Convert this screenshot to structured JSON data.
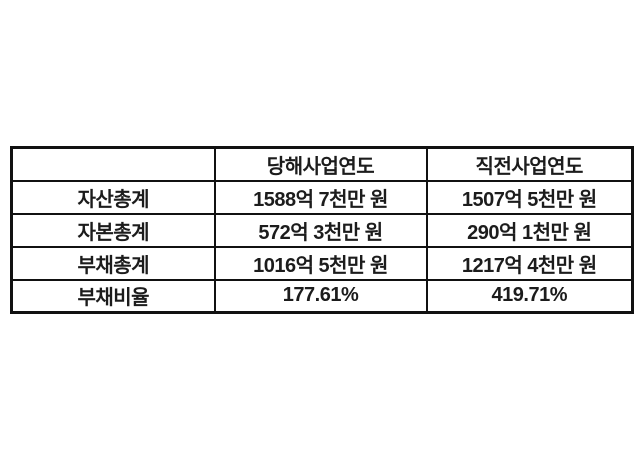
{
  "page": {
    "background": "#ffffff"
  },
  "table": {
    "border_color": "#111111",
    "text_color": "#1c1c1c",
    "header": {
      "corner": "",
      "current_year": "당해사업연도",
      "previous_year": "직전사업연도"
    },
    "rows": [
      {
        "label": "자산총계",
        "current": "1588억 7천만 원",
        "previous": "1507억 5천만 원"
      },
      {
        "label": "자본총계",
        "current": "572억 3천만 원",
        "previous": "290억 1천만 원"
      },
      {
        "label": "부채총계",
        "current": "1016억 5천만 원",
        "previous": "1217억 4천만 원"
      },
      {
        "label": "부채비율",
        "current": "177.61%",
        "previous": "419.71%"
      }
    ]
  }
}
